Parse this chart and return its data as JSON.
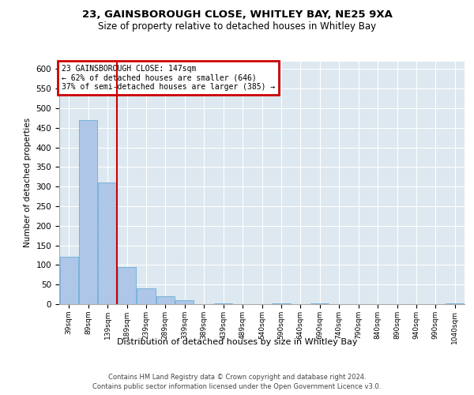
{
  "title1": "23, GAINSBOROUGH CLOSE, WHITLEY BAY, NE25 9XA",
  "title2": "Size of property relative to detached houses in Whitley Bay",
  "xlabel": "Distribution of detached houses by size in Whitley Bay",
  "ylabel": "Number of detached properties",
  "annotation_line1": "23 GAINSBOROUGH CLOSE: 147sqm",
  "annotation_line2": "← 62% of detached houses are smaller (646)",
  "annotation_line3": "37% of semi-detached houses are larger (385) →",
  "bin_labels": [
    "39sqm",
    "89sqm",
    "139sqm",
    "189sqm",
    "239sqm",
    "289sqm",
    "339sqm",
    "389sqm",
    "439sqm",
    "489sqm",
    "540sqm",
    "590sqm",
    "640sqm",
    "690sqm",
    "740sqm",
    "790sqm",
    "840sqm",
    "890sqm",
    "940sqm",
    "990sqm",
    "1040sqm"
  ],
  "bar_values": [
    120,
    470,
    310,
    95,
    40,
    20,
    10,
    0,
    2,
    0,
    0,
    2,
    0,
    2,
    0,
    0,
    0,
    0,
    0,
    0,
    2
  ],
  "bar_color": "#aec6e8",
  "bar_edge_color": "#6baed6",
  "vline_x": 2.47,
  "vline_color": "#cc0000",
  "ylim": [
    0,
    620
  ],
  "yticks": [
    0,
    50,
    100,
    150,
    200,
    250,
    300,
    350,
    400,
    450,
    500,
    550,
    600
  ],
  "annotation_box_color": "#cc0000",
  "footer1": "Contains HM Land Registry data © Crown copyright and database right 2024.",
  "footer2": "Contains public sector information licensed under the Open Government Licence v3.0.",
  "plot_bg_color": "#dde8f0"
}
